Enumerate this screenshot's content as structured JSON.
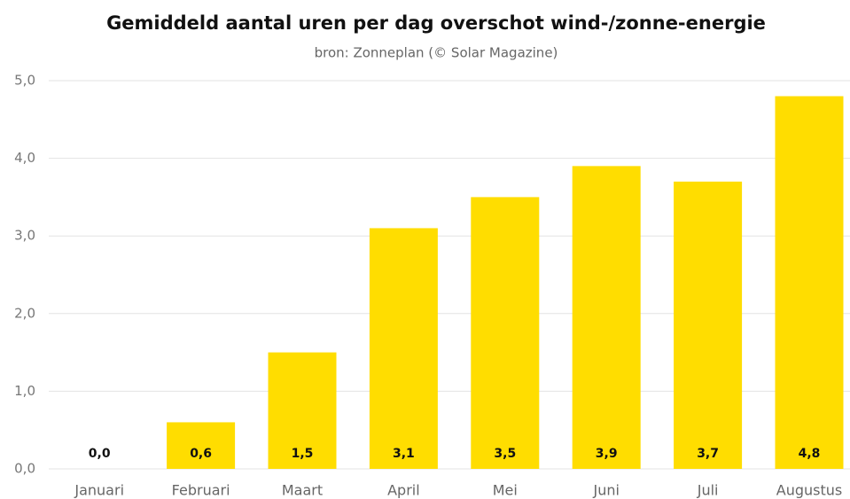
{
  "chart_data": {
    "type": "bar",
    "title": "Gemiddeld aantal uren per dag  overschot wind-/zonne-energie",
    "subtitle": "bron: Zonneplan (© Solar Magazine)",
    "categories": [
      "Januari",
      "Februari",
      "Maart",
      "April",
      "Mei",
      "Juni",
      "Juli",
      "Augustus"
    ],
    "values": [
      0.0,
      0.6,
      1.5,
      3.1,
      3.5,
      3.9,
      3.7,
      4.8
    ],
    "value_labels": [
      "0,0",
      "0,6",
      "1,5",
      "3,1",
      "3,5",
      "3,9",
      "3,7",
      "4,8"
    ],
    "color": "#ffdd00",
    "ylim": [
      0,
      5
    ],
    "yticks": [
      {
        "value": 0,
        "label": "0,0"
      },
      {
        "value": 1,
        "label": "1,0"
      },
      {
        "value": 2,
        "label": "2,0"
      },
      {
        "value": 3,
        "label": "3,0"
      },
      {
        "value": 4,
        "label": "4,0"
      },
      {
        "value": 5,
        "label": "5,0"
      }
    ],
    "grid": true
  }
}
